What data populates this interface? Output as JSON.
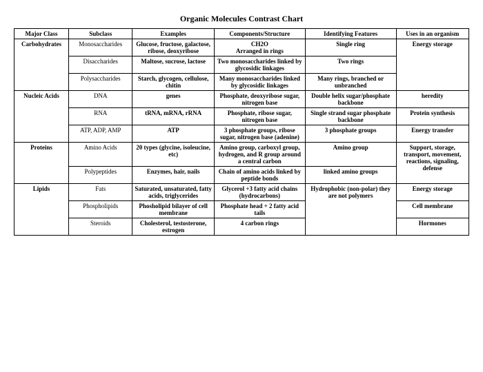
{
  "title": "Organic Molecules Contrast Chart",
  "columns": [
    "Major Class",
    "Subclass",
    "Examples",
    "Components/Structure",
    "Identifying Features",
    "Uses in an organism"
  ],
  "rows": [
    {
      "major": "Carbohydrates",
      "majorRowspan": 3,
      "subclass": "Monosaccharides",
      "examples": "Glucose, fructose, galactose, ribose, deoxyribose",
      "structure": "CH2O\nArranged in rings",
      "features": "Single ring",
      "uses": "Energy storage",
      "usesRowspan": 3
    },
    {
      "subclass": "Disaccharides",
      "examples": "Maltose, sucrose, lactose",
      "structure": "Two monosaccharides linked by glycosidic linkages",
      "features": "Two rings"
    },
    {
      "subclass": "Polysaccharides",
      "examples": "Starch, glycogen, cellulose, chitin",
      "structure": "Many monosaccharides linked by glycosidic linkages",
      "features": "Many rings, branched or unbranched"
    },
    {
      "major": "Nucleic Acids",
      "majorRowspan": 3,
      "subclass": "DNA",
      "examples": "genes",
      "structure": "Phosphate, deoxyribose sugar, nitrogen base",
      "features": "Double helix sugar/phosphate backbone",
      "uses": "heredity"
    },
    {
      "subclass": "RNA",
      "examples": "tRNA, mRNA, rRNA",
      "structure": "Phosphate, ribose sugar, nitrogen base",
      "features": "Single strand sugar phosphate backbone",
      "uses": "Protein synthesis"
    },
    {
      "subclass": "ATP, ADP, AMP",
      "examples": "ATP",
      "structure": "3 phosphate groups, ribose sugar, nitrogen base (adenine)",
      "features": "3 phosphate groups",
      "uses": "Energy transfer"
    },
    {
      "major": "Proteins",
      "majorRowspan": 2,
      "subclass": "Amino Acids",
      "examples": "20 types (glycine, isoleucine, etc)",
      "structure": "Amino group, carboxyl group, hydrogen, and R group around a central carbon",
      "features": "Amino group",
      "uses": "Support, storage, transport, movement, reactions, signaling, defense",
      "usesRowspan": 2
    },
    {
      "subclass": "Polypeptides",
      "examples": "Enzymes, hair, nails",
      "structure": "Chain of amino acids linked by peptide bonds",
      "features": "linked amino groups"
    },
    {
      "major": "Lipids",
      "majorRowspan": 3,
      "subclass": "Fats",
      "examples": "Saturated, unsaturated, fatty acids, triglycerides",
      "structure": "Glycerol +3 fatty acid chains (hydrocarbons)",
      "features": "Hydrophobic (non-polar) they are not polymers",
      "featuresRowspan": 3,
      "uses": "Energy storage"
    },
    {
      "subclass": "Phospholipids",
      "examples": "Phosholipid bilayer of cell membrane",
      "structure": "Phosphate head + 2 fatty acid tails",
      "uses": "Cell membrane"
    },
    {
      "subclass": "Steroids",
      "examples": "Cholesterol, testosterone, estrogen",
      "structure": "4 carbon rings",
      "uses": "Hormones"
    }
  ]
}
